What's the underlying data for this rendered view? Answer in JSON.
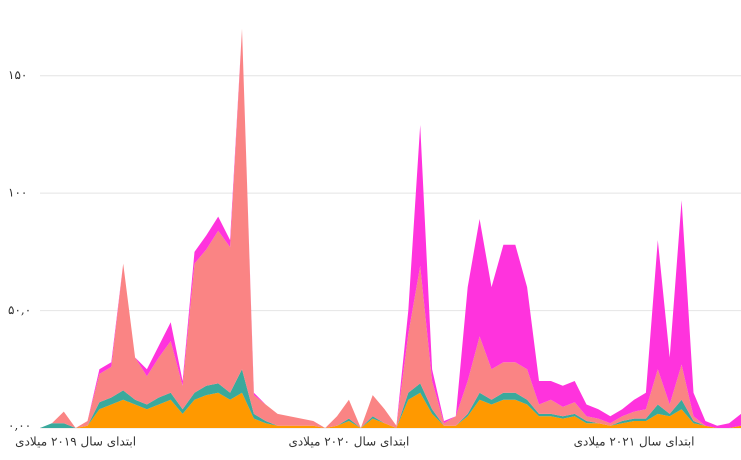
{
  "chart_data": {
    "type": "stacked_area",
    "categories": [
      null,
      null,
      null,
      "ابتدای سال ۲۰۱۹ میلادی",
      null,
      null,
      null,
      null,
      null,
      null,
      null,
      null,
      null,
      null,
      null,
      null,
      null,
      null,
      null,
      null,
      null,
      null,
      null,
      null,
      null,
      null,
      "ابتدای سال ۲۰۲۰ میلادی",
      null,
      null,
      null,
      null,
      null,
      null,
      null,
      null,
      null,
      null,
      null,
      null,
      null,
      null,
      null,
      null,
      null,
      null,
      null,
      null,
      null,
      null,
      null,
      "ابتدای سال ۲۰۲۱ میلادی",
      null,
      null,
      null,
      null,
      null,
      null,
      null,
      null,
      null
    ],
    "series": [
      {
        "color": "#ff9900",
        "values": [
          0,
          0,
          0,
          0,
          1,
          8,
          10,
          12,
          10,
          8,
          10,
          12,
          6,
          12,
          14,
          15,
          12,
          15,
          4,
          2,
          1,
          1,
          1,
          1,
          0,
          1,
          3,
          0,
          4,
          2,
          0,
          12,
          15,
          6,
          1,
          1,
          5,
          12,
          10,
          12,
          12,
          10,
          5,
          5,
          4,
          5,
          2,
          2,
          1,
          2,
          3,
          3,
          6,
          5,
          8,
          2,
          1,
          0,
          0,
          1
        ]
      },
      {
        "color": "#3aa99c",
        "values": [
          0,
          2,
          2,
          0,
          0,
          3,
          3,
          4,
          2,
          2,
          3,
          3,
          2,
          3,
          4,
          4,
          3,
          10,
          2,
          1,
          0,
          0,
          0,
          0,
          0,
          0,
          1,
          0,
          1,
          0,
          0,
          3,
          4,
          2,
          0,
          0,
          1,
          3,
          2,
          3,
          3,
          2,
          1,
          1,
          1,
          1,
          1,
          0,
          0,
          1,
          1,
          1,
          4,
          1,
          4,
          1,
          0,
          0,
          0,
          0
        ]
      },
      {
        "color": "#fa8484",
        "values": [
          0,
          0,
          5,
          0,
          2,
          12,
          13,
          54,
          18,
          12,
          17,
          22,
          10,
          55,
          58,
          65,
          62,
          145,
          8,
          7,
          5,
          4,
          3,
          2,
          0,
          4,
          8,
          0,
          9,
          6,
          1,
          25,
          50,
          12,
          1,
          4,
          14,
          24,
          13,
          13,
          13,
          13,
          4,
          6,
          4,
          5,
          2,
          2,
          1,
          2,
          3,
          4,
          15,
          4,
          15,
          2,
          0,
          0,
          0,
          0
        ]
      },
      {
        "color": "#ff33dd",
        "values": [
          0,
          0,
          0,
          0,
          0,
          2,
          2,
          0,
          0,
          3,
          5,
          8,
          2,
          5,
          6,
          6,
          3,
          0,
          1,
          0,
          0,
          0,
          0,
          0,
          0,
          0,
          0,
          0,
          0,
          0,
          0,
          10,
          60,
          5,
          1,
          0,
          40,
          50,
          35,
          50,
          50,
          35,
          10,
          8,
          9,
          9,
          5,
          4,
          3,
          3,
          5,
          7,
          55,
          20,
          70,
          10,
          2,
          1,
          2,
          5
        ]
      }
    ],
    "ylim": [
      0,
      175
    ],
    "yticks": [
      {
        "value": 0,
        "label": "۰,۰۰"
      },
      {
        "value": 50,
        "label": "۵۰,۰"
      },
      {
        "value": 100,
        "label": "۱۰۰"
      },
      {
        "value": 150,
        "label": "۱۵۰"
      }
    ],
    "grid": true
  }
}
